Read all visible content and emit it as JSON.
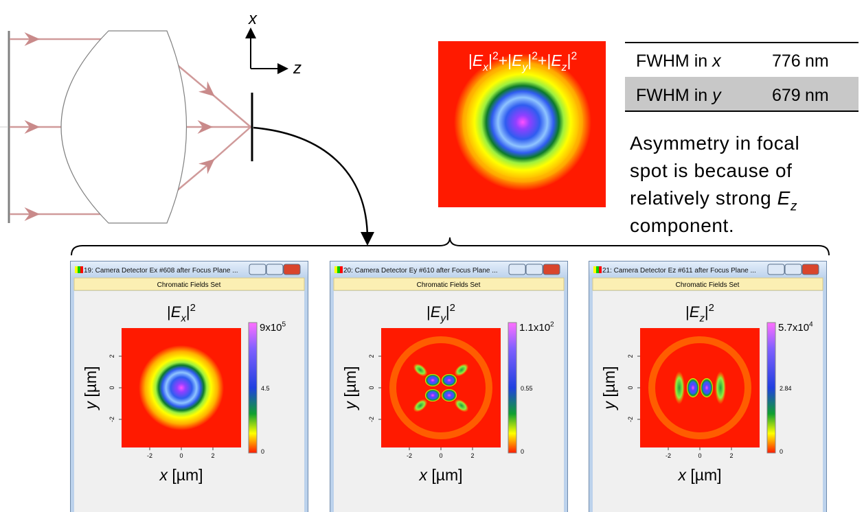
{
  "diagram": {
    "axis_x": "x",
    "axis_z": "z"
  },
  "focal_map": {
    "title": [
      {
        "text": "|"
      },
      {
        "text": "E",
        "style": "italic"
      },
      {
        "text": "x",
        "style": "italic-sub"
      },
      {
        "text": "|"
      },
      {
        "text": "2",
        "style": "sup"
      },
      {
        "text": "+|"
      },
      {
        "text": "E",
        "style": "italic"
      },
      {
        "text": "y",
        "style": "italic-sub"
      },
      {
        "text": "|"
      },
      {
        "text": "2",
        "style": "sup"
      },
      {
        "text": "+|"
      },
      {
        "text": "E",
        "style": "italic"
      },
      {
        "text": "z",
        "style": "italic-sub"
      },
      {
        "text": "|"
      },
      {
        "text": "2",
        "style": "sup"
      }
    ]
  },
  "table": {
    "rows": [
      {
        "label": [
          {
            "text": "FWHM in "
          },
          {
            "text": "x",
            "style": "italic"
          }
        ],
        "value": 776,
        "unit": "nm"
      },
      {
        "label": [
          {
            "text": "FWHM in "
          },
          {
            "text": "y",
            "style": "italic"
          }
        ],
        "value": 679,
        "unit": "nm"
      }
    ]
  },
  "note": {
    "lines": [
      [
        {
          "text": "Asymmetry in focal"
        }
      ],
      [
        {
          "text": "spot is because of"
        }
      ],
      [
        {
          "text": "relatively strong "
        },
        {
          "text": "E",
          "style": "italic"
        },
        {
          "text": "z",
          "style": "italic-sub"
        }
      ],
      [
        {
          "text": "component."
        }
      ]
    ]
  },
  "windows": [
    {
      "title": "19: Camera Detector Ex #608 after Focus Plane ...",
      "subtitle": "Chromatic Fields Set",
      "pattern": "ex",
      "plot_title": [
        {
          "text": "|"
        },
        {
          "text": "E",
          "style": "italic"
        },
        {
          "text": "x",
          "style": "italic-sub"
        },
        {
          "text": "|"
        },
        {
          "text": "2",
          "style": "sup"
        }
      ],
      "colorbar": {
        "max": [
          {
            "text": "9x10"
          },
          {
            "text": "5",
            "style": "sup"
          }
        ],
        "mid": 4.5,
        "min": 0
      },
      "x_ticks": [
        -2,
        0,
        2
      ],
      "y_ticks": [
        -2,
        0,
        2
      ],
      "x_label": [
        {
          "text": "x",
          "style": "italic"
        },
        {
          "text": " [µm]"
        }
      ],
      "y_label": [
        {
          "text": "y",
          "style": "italic"
        },
        {
          "text": " [µm]"
        }
      ]
    },
    {
      "title": "20: Camera Detector Ey #610 after Focus Plane ...",
      "subtitle": "Chromatic Fields Set",
      "pattern": "ey",
      "plot_title": [
        {
          "text": "|"
        },
        {
          "text": "E",
          "style": "italic"
        },
        {
          "text": "y",
          "style": "italic-sub"
        },
        {
          "text": "|"
        },
        {
          "text": "2",
          "style": "sup"
        }
      ],
      "colorbar": {
        "max": [
          {
            "text": "1.1x10"
          },
          {
            "text": "2",
            "style": "sup"
          }
        ],
        "mid": 0.55,
        "min": 0
      },
      "x_ticks": [
        -2,
        0,
        2
      ],
      "y_ticks": [
        -2,
        0,
        2
      ],
      "x_label": [
        {
          "text": "x",
          "style": "italic"
        },
        {
          "text": " [µm]"
        }
      ],
      "y_label": [
        {
          "text": "y",
          "style": "italic"
        },
        {
          "text": " [µm]"
        }
      ]
    },
    {
      "title": "21: Camera Detector Ez #611 after Focus Plane ...",
      "subtitle": "Chromatic Fields Set",
      "pattern": "ez",
      "plot_title": [
        {
          "text": "|"
        },
        {
          "text": "E",
          "style": "italic"
        },
        {
          "text": "z",
          "style": "italic-sub"
        },
        {
          "text": "|"
        },
        {
          "text": "2",
          "style": "sup"
        }
      ],
      "colorbar": {
        "max": [
          {
            "text": "5.7x10"
          },
          {
            "text": "4",
            "style": "sup"
          }
        ],
        "mid": 2.84,
        "min": 0
      },
      "x_ticks": [
        -2,
        0,
        2
      ],
      "y_ticks": [
        -2,
        0,
        2
      ],
      "x_label": [
        {
          "text": "x",
          "style": "italic"
        },
        {
          "text": " [µm]"
        }
      ],
      "y_label": [
        {
          "text": "y",
          "style": "italic"
        },
        {
          "text": " [µm]"
        }
      ]
    }
  ]
}
